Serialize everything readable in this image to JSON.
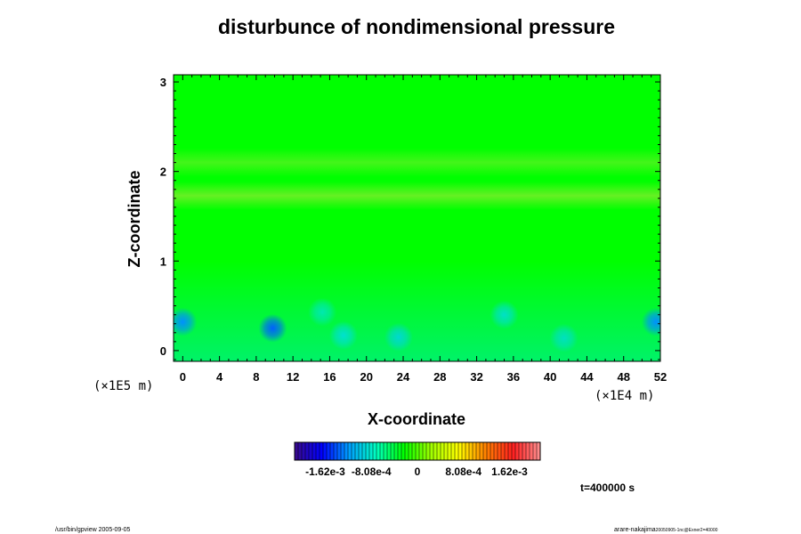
{
  "chart_data": {
    "type": "heatmap",
    "title": "disturbunce of nondimensional pressure",
    "xlabel": "X-coordinate",
    "ylabel": "Z-coordinate",
    "x_unit": "(×1E4 m)",
    "y_unit": "(×1E5 m)",
    "xlim": [
      -1,
      52
    ],
    "ylim": [
      -0.12,
      3.08
    ],
    "x_ticks": [
      "0",
      "4",
      "8",
      "12",
      "16",
      "20",
      "24",
      "28",
      "32",
      "36",
      "40",
      "44",
      "48",
      "52"
    ],
    "y_ticks": [
      "0",
      "1",
      "2",
      "3"
    ],
    "colorbar": {
      "ticks": [
        "-1.62e-3",
        "-8.08e-4",
        "0",
        "8.08e-4",
        "1.62e-3"
      ],
      "colors": [
        "#3a0a8a",
        "#0000ff",
        "#00a0ff",
        "#00ffc0",
        "#00ff00",
        "#a0ff00",
        "#ffff00",
        "#ff8000",
        "#ff2020",
        "#ff9090"
      ]
    },
    "field": {
      "background_color": "#00ff00",
      "bands": [
        {
          "z": 1.73,
          "color": "#66f024"
        },
        {
          "z": 2.1,
          "color": "#44f51a"
        }
      ],
      "lower_layer_color": "#00f07a",
      "anomalies": [
        {
          "x": 0,
          "z": 0.32,
          "color": "#0090ff"
        },
        {
          "x": 9.8,
          "z": 0.25,
          "color": "#0060ff"
        },
        {
          "x": 15.2,
          "z": 0.43,
          "color": "#00e8b0"
        },
        {
          "x": 17.5,
          "z": 0.17,
          "color": "#00e0d0"
        },
        {
          "x": 23.5,
          "z": 0.15,
          "color": "#00d8d0"
        },
        {
          "x": 35,
          "z": 0.4,
          "color": "#00e0c8"
        },
        {
          "x": 41.5,
          "z": 0.14,
          "color": "#00e0c0"
        },
        {
          "x": 51.5,
          "z": 0.32,
          "color": "#0090ff"
        }
      ]
    },
    "time_label": "t=400000 s",
    "grid": false
  },
  "footer": {
    "left": "/usr/bin/gpview 2005-09-05",
    "right_main": "arare-nakajima",
    "right_small": "20050905-1nc@Exner2=40000"
  }
}
